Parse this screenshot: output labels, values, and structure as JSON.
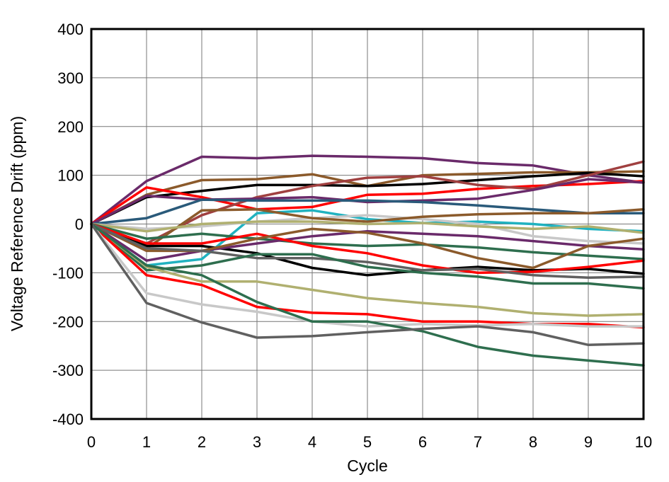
{
  "chart_data": {
    "type": "line",
    "title": "",
    "xlabel": "Cycle",
    "ylabel": "Voltage Reference Drift (ppm)",
    "xlim": [
      0,
      10
    ],
    "ylim": [
      -400,
      400
    ],
    "x_ticks": [
      0,
      1,
      2,
      3,
      4,
      5,
      6,
      7,
      8,
      9,
      10
    ],
    "y_ticks": [
      -400,
      -300,
      -200,
      -100,
      0,
      100,
      200,
      300,
      400
    ],
    "grid": true,
    "x": [
      0,
      1,
      2,
      3,
      4,
      5,
      6,
      7,
      8,
      9,
      10
    ],
    "series": [
      {
        "color": "#6a2a6a",
        "values": [
          0,
          88,
          138,
          135,
          140,
          138,
          135,
          125,
          120,
          100,
          85
        ]
      },
      {
        "color": "#8b5a2b",
        "values": [
          0,
          60,
          90,
          92,
          102,
          78,
          100,
          103,
          106,
          106,
          108
        ]
      },
      {
        "color": "#000000",
        "values": [
          0,
          55,
          68,
          80,
          80,
          78,
          82,
          90,
          98,
          105,
          98
        ]
      },
      {
        "color": "#ff0000",
        "values": [
          0,
          75,
          55,
          30,
          35,
          60,
          62,
          72,
          78,
          82,
          88
        ]
      },
      {
        "color": "#a04040",
        "values": [
          0,
          -40,
          18,
          55,
          78,
          95,
          98,
          80,
          72,
          100,
          128
        ]
      },
      {
        "color": "#6a2a6a",
        "values": [
          0,
          58,
          50,
          52,
          55,
          45,
          48,
          52,
          70,
          92,
          85
        ]
      },
      {
        "color": "#2a5a7a",
        "values": [
          0,
          12,
          50,
          48,
          48,
          48,
          45,
          38,
          30,
          22,
          22
        ]
      },
      {
        "color": "#20b2c0",
        "values": [
          0,
          -85,
          -72,
          22,
          28,
          10,
          2,
          5,
          0,
          -10,
          -15
        ]
      },
      {
        "color": "#c8c8c8",
        "values": [
          0,
          -10,
          -5,
          5,
          12,
          18,
          10,
          0,
          -25,
          -35,
          -40
        ]
      },
      {
        "color": "#8b5a2b",
        "values": [
          0,
          -50,
          28,
          30,
          12,
          5,
          15,
          20,
          22,
          22,
          30
        ]
      },
      {
        "color": "#b0b070",
        "values": [
          0,
          -15,
          0,
          5,
          5,
          0,
          2,
          -5,
          -10,
          -5,
          -18
        ]
      },
      {
        "color": "#2e6e4e",
        "values": [
          0,
          -30,
          -20,
          -30,
          -40,
          -45,
          -42,
          -48,
          -58,
          -65,
          -72
        ]
      },
      {
        "color": "#000000",
        "values": [
          0,
          -45,
          -45,
          -60,
          -90,
          -105,
          -95,
          -88,
          -95,
          -92,
          -102
        ]
      },
      {
        "color": "#6a2a6a",
        "values": [
          0,
          -75,
          -55,
          -40,
          -25,
          -15,
          -20,
          -25,
          -35,
          -45,
          -52
        ]
      },
      {
        "color": "#ff0000",
        "values": [
          0,
          -40,
          -40,
          -20,
          -45,
          -60,
          -85,
          -100,
          -98,
          -88,
          -75
        ]
      },
      {
        "color": "#8b5a2b",
        "values": [
          0,
          -55,
          -55,
          -30,
          -10,
          -18,
          -40,
          -70,
          -90,
          -45,
          -30
        ]
      },
      {
        "color": "#606060",
        "values": [
          0,
          -50,
          -55,
          -70,
          -70,
          -78,
          -95,
          -92,
          -105,
          -110,
          -108
        ]
      },
      {
        "color": "#2e6e4e",
        "values": [
          0,
          -95,
          -85,
          -62,
          -62,
          -88,
          -100,
          -108,
          -122,
          -122,
          -132
        ]
      },
      {
        "color": "#b0b070",
        "values": [
          0,
          -88,
          -118,
          -118,
          -135,
          -152,
          -162,
          -170,
          -183,
          -188,
          -185
        ]
      },
      {
        "color": "#ff0000",
        "values": [
          0,
          -105,
          -125,
          -170,
          -182,
          -185,
          -200,
          -200,
          -205,
          -205,
          -212
        ]
      },
      {
        "color": "#c8c8c8",
        "values": [
          0,
          -142,
          -165,
          -180,
          -200,
          -210,
          -205,
          -208,
          -205,
          -210,
          -210
        ]
      },
      {
        "color": "#2e6e4e",
        "values": [
          0,
          -85,
          -105,
          -160,
          -200,
          -200,
          -220,
          -252,
          -270,
          -280,
          -290
        ]
      },
      {
        "color": "#606060",
        "values": [
          0,
          -162,
          -202,
          -233,
          -230,
          -222,
          -215,
          -210,
          -222,
          -248,
          -245
        ]
      }
    ]
  }
}
